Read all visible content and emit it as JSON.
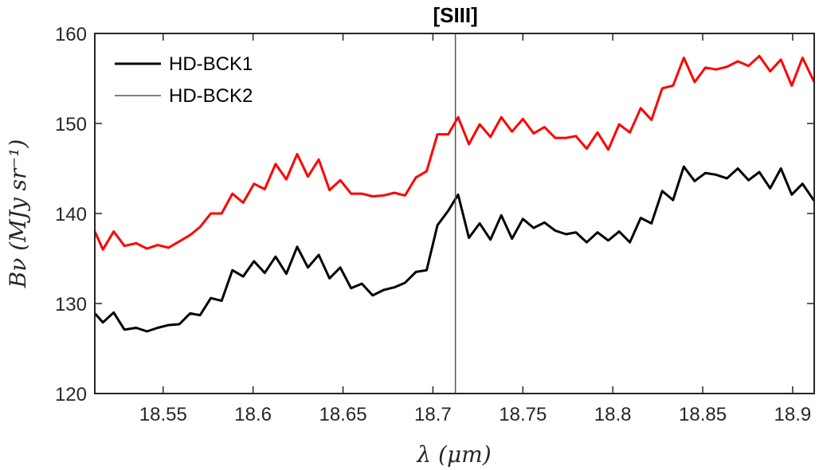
{
  "chart_data": {
    "type": "line",
    "xlabel": "λ (μm)",
    "ylabel": "Bν (MJy sr⁻¹)",
    "xlim": [
      18.512,
      18.912
    ],
    "ylim": [
      120,
      160
    ],
    "xticks": [
      18.55,
      18.6,
      18.65,
      18.7,
      18.75,
      18.8,
      18.85,
      18.9
    ],
    "xtick_labels": [
      "18.55",
      "18.6",
      "18.65",
      "18.7",
      "18.75",
      "18.8",
      "18.85",
      "18.9"
    ],
    "yticks": [
      120,
      130,
      140,
      150,
      160
    ],
    "ytick_labels": [
      "120",
      "130",
      "140",
      "150",
      "160"
    ],
    "grid": false,
    "legend_position": "top-left",
    "legend": [
      {
        "label": "HD-BCK1",
        "color": "#000000",
        "width": 3
      },
      {
        "label": "HD-BCK2",
        "color": "#555555",
        "width": 1.5
      }
    ],
    "vline": {
      "x": 18.7125,
      "label": "[SIII]",
      "color": "#555555"
    },
    "series": [
      {
        "color": "#ff0000",
        "x": [
          18.512,
          18.5165,
          18.5225,
          18.5285,
          18.535,
          18.541,
          18.547,
          18.553,
          18.559,
          18.565,
          18.5705,
          18.5765,
          18.5825,
          18.5885,
          18.5945,
          18.6005,
          18.6065,
          18.6125,
          18.6185,
          18.6245,
          18.6305,
          18.6365,
          18.6425,
          18.6485,
          18.6545,
          18.6605,
          18.6665,
          18.6725,
          18.6785,
          18.6845,
          18.6905,
          18.6965,
          18.7025,
          18.7085,
          18.714,
          18.72,
          18.726,
          18.732,
          18.738,
          18.744,
          18.75,
          18.756,
          18.762,
          18.768,
          18.774,
          18.7795,
          18.7855,
          18.7915,
          18.7975,
          18.8035,
          18.8095,
          18.8155,
          18.8215,
          18.8275,
          18.8335,
          18.8395,
          18.8455,
          18.8515,
          18.8575,
          18.8635,
          18.8695,
          18.8755,
          18.8815,
          18.8875,
          18.8935,
          18.8995,
          18.9055,
          18.912
        ],
        "values": [
          138.0,
          136.0,
          138.0,
          136.4,
          136.7,
          136.1,
          136.5,
          136.2,
          136.9,
          137.6,
          138.5,
          140.0,
          140.0,
          142.2,
          141.2,
          143.3,
          142.7,
          145.5,
          143.8,
          146.6,
          144.1,
          146.0,
          142.6,
          143.7,
          142.2,
          142.2,
          141.9,
          142.0,
          142.3,
          142.0,
          144.0,
          144.7,
          148.8,
          148.8,
          150.7,
          147.7,
          149.9,
          148.5,
          150.7,
          149.1,
          150.5,
          148.9,
          149.6,
          148.4,
          148.4,
          148.6,
          147.2,
          149.0,
          147.1,
          149.9,
          149.0,
          151.7,
          150.4,
          153.9,
          154.2,
          157.3,
          154.6,
          156.2,
          156.0,
          156.3,
          156.9,
          156.4,
          157.5,
          155.8,
          157.1,
          154.2,
          157.3,
          154.6
        ]
      },
      {
        "color": "#000000",
        "x": [
          18.512,
          18.5165,
          18.5225,
          18.5285,
          18.535,
          18.541,
          18.547,
          18.553,
          18.559,
          18.565,
          18.5705,
          18.5765,
          18.5825,
          18.5885,
          18.5945,
          18.6005,
          18.6065,
          18.6125,
          18.6185,
          18.6245,
          18.6305,
          18.6365,
          18.6425,
          18.6485,
          18.6545,
          18.6605,
          18.6665,
          18.6725,
          18.6785,
          18.6845,
          18.6905,
          18.6965,
          18.7025,
          18.7085,
          18.714,
          18.72,
          18.726,
          18.732,
          18.738,
          18.744,
          18.75,
          18.756,
          18.762,
          18.768,
          18.774,
          18.7795,
          18.7855,
          18.7915,
          18.7975,
          18.8035,
          18.8095,
          18.8155,
          18.8215,
          18.8275,
          18.8335,
          18.8395,
          18.8455,
          18.8515,
          18.8575,
          18.8635,
          18.8695,
          18.8755,
          18.8815,
          18.8875,
          18.8935,
          18.8995,
          18.9055,
          18.912
        ],
        "values": [
          128.9,
          127.9,
          129.0,
          127.1,
          127.3,
          126.9,
          127.3,
          127.6,
          127.7,
          128.9,
          128.7,
          130.6,
          130.3,
          133.7,
          133.0,
          134.7,
          133.4,
          135.2,
          133.3,
          136.3,
          134.0,
          135.4,
          132.8,
          134.0,
          131.7,
          132.2,
          130.9,
          131.5,
          131.8,
          132.3,
          133.5,
          133.7,
          138.7,
          140.3,
          142.1,
          137.3,
          138.9,
          137.1,
          139.8,
          137.2,
          139.4,
          138.4,
          139.0,
          138.1,
          137.7,
          137.9,
          136.8,
          137.9,
          137.0,
          138.0,
          136.8,
          139.5,
          138.9,
          142.5,
          141.5,
          145.2,
          143.6,
          144.5,
          144.3,
          143.9,
          145.0,
          143.7,
          144.6,
          142.8,
          145.0,
          142.1,
          143.3,
          141.4
        ]
      }
    ]
  }
}
